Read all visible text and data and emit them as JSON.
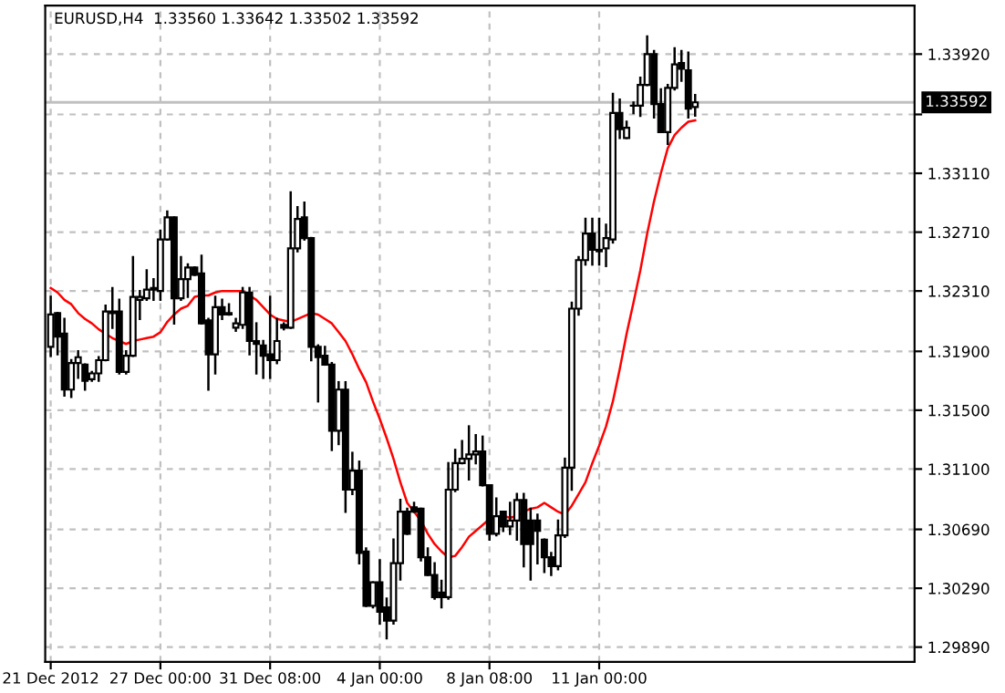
{
  "chart_data": {
    "type": "candlestick",
    "title": "EURUSD,H4  1.33560 1.33642 1.33502 1.33592",
    "categories": [
      "21 Dec 2012",
      null,
      null,
      null,
      null,
      null,
      null,
      null,
      null,
      null,
      null,
      null,
      null,
      null,
      null,
      null,
      "27 Dec 00:00",
      null,
      null,
      null,
      null,
      null,
      null,
      null,
      null,
      null,
      null,
      null,
      null,
      null,
      null,
      null,
      "31 Dec 08:00",
      null,
      null,
      null,
      null,
      null,
      null,
      null,
      null,
      null,
      null,
      null,
      null,
      null,
      null,
      null,
      "4 Jan 00:00",
      null,
      null,
      null,
      null,
      null,
      null,
      null,
      null,
      null,
      null,
      null,
      null,
      null,
      null,
      null,
      "8 Jan 08:00",
      null,
      null,
      null,
      null,
      null,
      null,
      null,
      null,
      null,
      null,
      null,
      null,
      null,
      null,
      null,
      "11 Jan 00:00",
      null,
      null,
      null,
      null,
      null,
      null,
      null,
      null,
      null,
      null,
      null,
      null,
      null,
      null
    ],
    "ohlc": [
      [
        1.3193,
        1.3227,
        1.3187,
        1.3215
      ],
      [
        1.3216,
        1.3216,
        1.3188,
        1.32
      ],
      [
        1.3202,
        1.3212,
        1.316,
        1.3164
      ],
      [
        1.3164,
        1.3184,
        1.3159,
        1.3182
      ],
      [
        1.3182,
        1.319,
        1.3172,
        1.3186
      ],
      [
        1.3181,
        1.3181,
        1.3164,
        1.317
      ],
      [
        1.3171,
        1.3176,
        1.317,
        1.3175
      ],
      [
        1.3175,
        1.3186,
        1.317,
        1.3184
      ],
      [
        1.3184,
        1.3221,
        1.3184,
        1.3217
      ],
      [
        1.3216,
        1.3233,
        1.3206,
        1.3217
      ],
      [
        1.3217,
        1.3225,
        1.3175,
        1.3176
      ],
      [
        1.3176,
        1.319,
        1.3175,
        1.3187
      ],
      [
        1.3187,
        1.3254,
        1.3187,
        1.3227
      ],
      [
        1.3225,
        1.3231,
        1.3212,
        1.3227
      ],
      [
        1.3226,
        1.3245,
        1.3225,
        1.3232
      ],
      [
        1.3232,
        1.3239,
        1.3225,
        1.3233
      ],
      [
        1.3231,
        1.3272,
        1.3225,
        1.3266
      ],
      [
        1.3266,
        1.3285,
        1.3266,
        1.3281
      ],
      [
        1.3281,
        1.3281,
        1.3209,
        1.3226
      ],
      [
        1.3226,
        1.3254,
        1.3225,
        1.3239
      ],
      [
        1.3239,
        1.3249,
        1.3227,
        1.3247
      ],
      [
        1.3247,
        1.3247,
        1.3242,
        1.3242
      ],
      [
        1.3243,
        1.3255,
        1.3209,
        1.3209
      ],
      [
        1.3211,
        1.3212,
        1.3164,
        1.3188
      ],
      [
        1.3188,
        1.3227,
        1.3175,
        1.322
      ],
      [
        1.322,
        1.3225,
        1.3212,
        1.3215
      ],
      [
        1.3215,
        1.3222,
        1.3215,
        1.3216
      ],
      [
        1.3206,
        1.3212,
        1.3204,
        1.3209
      ],
      [
        1.3208,
        1.3233,
        1.3206,
        1.323
      ],
      [
        1.323,
        1.3233,
        1.3188,
        1.3197
      ],
      [
        1.3197,
        1.3209,
        1.3175,
        1.3195
      ],
      [
        1.3194,
        1.3197,
        1.3172,
        1.3187
      ],
      [
        1.3188,
        1.3227,
        1.3172,
        1.3184
      ],
      [
        1.3184,
        1.3212,
        1.3182,
        1.3197
      ],
      [
        1.3208,
        1.3209,
        1.3205,
        1.3206
      ],
      [
        1.3206,
        1.3298,
        1.3206,
        1.326
      ],
      [
        1.326,
        1.3288,
        1.3258,
        1.328
      ],
      [
        1.3281,
        1.3291,
        1.3266,
        1.3267
      ],
      [
        1.3267,
        1.3267,
        1.3184,
        1.3193
      ],
      [
        1.3193,
        1.3194,
        1.3156,
        1.3186
      ],
      [
        1.3187,
        1.3193,
        1.3181,
        1.3181
      ],
      [
        1.3181,
        1.3182,
        1.3123,
        1.3136
      ],
      [
        1.3136,
        1.3169,
        1.3127,
        1.3164
      ],
      [
        1.3164,
        1.3169,
        1.3081,
        1.3096
      ],
      [
        1.3096,
        1.3121,
        1.3093,
        1.3109
      ],
      [
        1.3109,
        1.3115,
        1.3046,
        1.3053
      ],
      [
        1.3054,
        1.3056,
        1.3017,
        1.3017
      ],
      [
        1.3017,
        1.3033,
        1.3016,
        1.3033
      ],
      [
        1.3033,
        1.3048,
        1.3005,
        1.3013
      ],
      [
        1.3016,
        1.3022,
        1.2995,
        1.3007
      ],
      [
        1.3007,
        1.3062,
        1.3005,
        1.3046
      ],
      [
        1.3046,
        1.3089,
        1.3035,
        1.3081
      ],
      [
        1.3081,
        1.3083,
        1.3066,
        1.3066
      ],
      [
        1.3084,
        1.3087,
        1.3081,
        1.3081
      ],
      [
        1.3083,
        1.3083,
        1.3048,
        1.305
      ],
      [
        1.305,
        1.3056,
        1.3038,
        1.3038
      ],
      [
        1.3038,
        1.3046,
        1.3022,
        1.3023
      ],
      [
        1.3026,
        1.3034,
        1.3016,
        1.3023
      ],
      [
        1.3023,
        1.3114,
        1.3022,
        1.3096
      ],
      [
        1.3096,
        1.3123,
        1.3095,
        1.3114
      ],
      [
        1.3114,
        1.3129,
        1.3114,
        1.3117
      ],
      [
        1.3117,
        1.3139,
        1.3103,
        1.312
      ],
      [
        1.312,
        1.3133,
        1.3114,
        1.3122
      ],
      [
        1.3122,
        1.3132,
        1.3099,
        1.3099
      ],
      [
        1.3099,
        1.3099,
        1.3062,
        1.3066
      ],
      [
        1.3066,
        1.309,
        1.3065,
        1.3078
      ],
      [
        1.3081,
        1.3081,
        1.3068,
        1.3071
      ],
      [
        1.3071,
        1.3087,
        1.3066,
        1.3075
      ],
      [
        1.3075,
        1.3093,
        1.3062,
        1.3089
      ],
      [
        1.3089,
        1.3093,
        1.3044,
        1.3059
      ],
      [
        1.3075,
        1.3083,
        1.3035,
        1.3059
      ],
      [
        1.3075,
        1.3079,
        1.3046,
        1.3068
      ],
      [
        1.3062,
        1.3062,
        1.304,
        1.305
      ],
      [
        1.305,
        1.3053,
        1.3038,
        1.3044
      ],
      [
        1.3044,
        1.3075,
        1.3042,
        1.3065
      ],
      [
        1.3065,
        1.3117,
        1.3064,
        1.3111
      ],
      [
        1.3111,
        1.3223,
        1.3096,
        1.3219
      ],
      [
        1.3219,
        1.3254,
        1.3215,
        1.3252
      ],
      [
        1.3252,
        1.328,
        1.3249,
        1.327
      ],
      [
        1.327,
        1.328,
        1.3249,
        1.3259
      ],
      [
        1.3259,
        1.328,
        1.3249,
        1.3258
      ],
      [
        1.326,
        1.3276,
        1.3248,
        1.3267
      ],
      [
        1.3266,
        1.3365,
        1.3264,
        1.3352
      ],
      [
        1.3352,
        1.3361,
        1.3335,
        1.3341
      ],
      [
        1.3335,
        1.3346,
        1.3335,
        1.3342
      ],
      [
        1.3357,
        1.3359,
        1.3352,
        1.3357
      ],
      [
        1.3357,
        1.3376,
        1.335,
        1.3371
      ],
      [
        1.3371,
        1.3404,
        1.3371,
        1.3392
      ],
      [
        1.3392,
        1.3394,
        1.3349,
        1.3358
      ],
      [
        1.3358,
        1.3368,
        1.3339,
        1.3339
      ],
      [
        1.3339,
        1.3371,
        1.3331,
        1.3369
      ],
      [
        1.3369,
        1.3396,
        1.3368,
        1.3385
      ],
      [
        1.3386,
        1.3394,
        1.3374,
        1.3382
      ],
      [
        1.3381,
        1.3393,
        1.3349,
        1.3355
      ],
      [
        1.3356,
        1.33642,
        1.33502,
        1.33592
      ]
    ],
    "series": [
      {
        "type": "line",
        "color": "#ff0000",
        "values": [
          1.3233,
          1.323,
          1.3225,
          1.3222,
          1.3216,
          1.3212,
          1.3209,
          1.3205,
          1.3202,
          1.3199,
          1.3197,
          1.3195,
          1.3197,
          1.3198,
          1.3199,
          1.32,
          1.3203,
          1.321,
          1.3215,
          1.3219,
          1.3221,
          1.3227,
          1.3228,
          1.3228,
          1.323,
          1.3231,
          1.3231,
          1.3231,
          1.3231,
          1.3228,
          1.3225,
          1.322,
          1.3215,
          1.3212,
          1.3211,
          1.321,
          1.3212,
          1.3214,
          1.3216,
          1.3215,
          1.3212,
          1.3209,
          1.3203,
          1.3197,
          1.3188,
          1.3178,
          1.3169,
          1.3156,
          1.3144,
          1.3131,
          1.3117,
          1.3101,
          1.3087,
          1.3081,
          1.3075,
          1.3066,
          1.3059,
          1.3054,
          1.305,
          1.3051,
          1.3057,
          1.3064,
          1.3068,
          1.3072,
          1.3076,
          1.3077,
          1.3078,
          1.3077,
          1.3078,
          1.3081,
          1.3083,
          1.3084,
          1.3087,
          1.3084,
          1.3081,
          1.3079,
          1.3085,
          1.3093,
          1.3101,
          1.3114,
          1.3126,
          1.3139,
          1.3156,
          1.3178,
          1.3202,
          1.3223,
          1.3245,
          1.327,
          1.3292,
          1.3311,
          1.3328,
          1.3337,
          1.3342,
          1.3346,
          1.3347
        ]
      }
    ],
    "ylim": [
      1.2979,
      1.3425
    ],
    "yticks": [
      {
        "value": 1.3392,
        "label": "1.33920"
      },
      {
        "value": 1.3351,
        "label": null
      },
      {
        "value": 1.3311,
        "label": "1.33110"
      },
      {
        "value": 1.3271,
        "label": "1.32710"
      },
      {
        "value": 1.3231,
        "label": "1.32310"
      },
      {
        "value": 1.319,
        "label": "1.31900"
      },
      {
        "value": 1.315,
        "label": "1.31500"
      },
      {
        "value": 1.311,
        "label": "1.31100"
      },
      {
        "value": 1.3069,
        "label": "1.30690"
      },
      {
        "value": 1.3029,
        "label": "1.30290"
      },
      {
        "value": 1.2989,
        "label": "1.29890"
      }
    ],
    "ref_lines": [
      {
        "axis": "y",
        "value": 1.33592,
        "label": "1.33592",
        "color": "#c0c0c0"
      }
    ],
    "grid": true
  }
}
